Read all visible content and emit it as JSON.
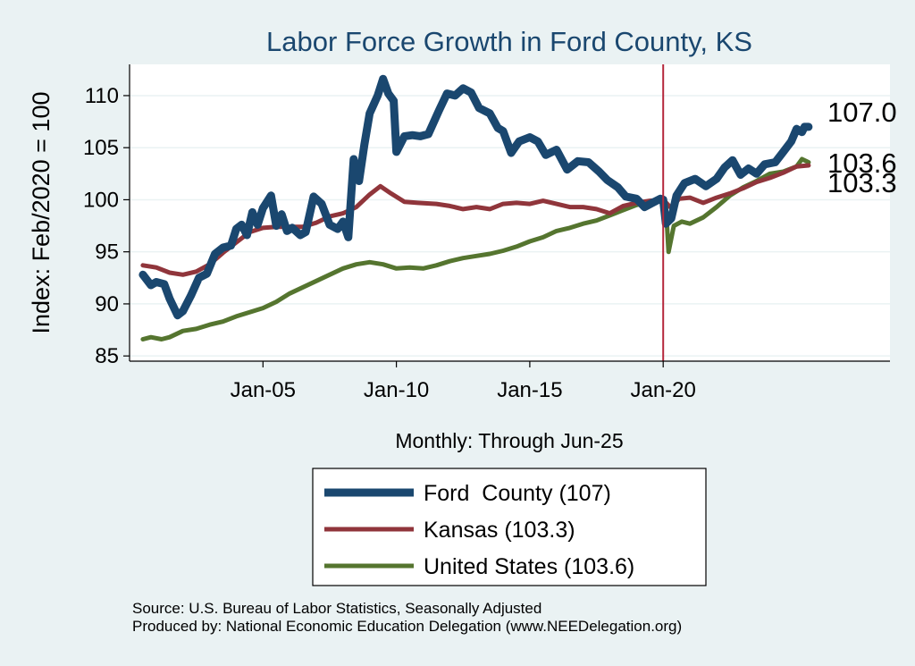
{
  "chart_data": {
    "type": "line",
    "title": "Labor Force Growth in Ford  County, KS",
    "xlabel": "Monthly: Through Jun-25",
    "ylabel": "Index: Feb/2020 = 100",
    "ylim": [
      84.5,
      113
    ],
    "xlim": [
      2000.0,
      2028.5
    ],
    "yticks": [
      85,
      90,
      95,
      100,
      105,
      110
    ],
    "xticks": [
      {
        "x": 2005.0,
        "label": "Jan-05"
      },
      {
        "x": 2010.0,
        "label": "Jan-10"
      },
      {
        "x": 2015.0,
        "label": "Jan-15"
      },
      {
        "x": 2020.0,
        "label": "Jan-20"
      }
    ],
    "grid": true,
    "vline": {
      "x": 2020.0,
      "color": "#b5283c"
    },
    "legend_position": "bottom",
    "series": [
      {
        "name": "Ford  County (107)",
        "color": "#1a476f",
        "end_label": "107.0",
        "points": [
          [
            2000.5,
            92.8
          ],
          [
            2000.8,
            91.8
          ],
          [
            2001.0,
            92.1
          ],
          [
            2001.3,
            91.9
          ],
          [
            2001.5,
            90.5
          ],
          [
            2001.8,
            88.9
          ],
          [
            2002.0,
            89.3
          ],
          [
            2002.3,
            90.8
          ],
          [
            2002.6,
            92.5
          ],
          [
            2002.9,
            92.9
          ],
          [
            2003.2,
            94.8
          ],
          [
            2003.5,
            95.4
          ],
          [
            2003.8,
            95.6
          ],
          [
            2004.0,
            97.2
          ],
          [
            2004.2,
            97.6
          ],
          [
            2004.4,
            96.6
          ],
          [
            2004.6,
            98.8
          ],
          [
            2004.8,
            97.6
          ],
          [
            2005.0,
            99.2
          ],
          [
            2005.3,
            100.4
          ],
          [
            2005.5,
            97.5
          ],
          [
            2005.7,
            98.6
          ],
          [
            2005.9,
            97.0
          ],
          [
            2006.1,
            97.3
          ],
          [
            2006.4,
            96.6
          ],
          [
            2006.6,
            96.9
          ],
          [
            2006.9,
            100.3
          ],
          [
            2007.2,
            99.6
          ],
          [
            2007.5,
            97.6
          ],
          [
            2007.8,
            97.2
          ],
          [
            2008.0,
            97.9
          ],
          [
            2008.2,
            96.4
          ],
          [
            2008.4,
            103.9
          ],
          [
            2008.6,
            101.8
          ],
          [
            2008.8,
            105.3
          ],
          [
            2009.0,
            108.3
          ],
          [
            2009.3,
            110.0
          ],
          [
            2009.5,
            111.6
          ],
          [
            2009.7,
            110.2
          ],
          [
            2009.9,
            109.5
          ],
          [
            2010.0,
            104.6
          ],
          [
            2010.3,
            106.1
          ],
          [
            2010.6,
            106.2
          ],
          [
            2010.9,
            106.1
          ],
          [
            2011.2,
            106.3
          ],
          [
            2011.6,
            108.6
          ],
          [
            2011.9,
            110.2
          ],
          [
            2012.2,
            110.0
          ],
          [
            2012.5,
            110.7
          ],
          [
            2012.8,
            110.3
          ],
          [
            2013.1,
            108.8
          ],
          [
            2013.5,
            108.3
          ],
          [
            2013.8,
            106.9
          ],
          [
            2014.0,
            106.6
          ],
          [
            2014.3,
            104.5
          ],
          [
            2014.6,
            105.6
          ],
          [
            2015.0,
            106.0
          ],
          [
            2015.3,
            105.6
          ],
          [
            2015.6,
            104.3
          ],
          [
            2016.0,
            104.8
          ],
          [
            2016.4,
            102.9
          ],
          [
            2016.8,
            103.7
          ],
          [
            2017.2,
            103.6
          ],
          [
            2017.6,
            102.7
          ],
          [
            2017.9,
            101.9
          ],
          [
            2018.3,
            101.2
          ],
          [
            2018.6,
            100.3
          ],
          [
            2019.0,
            100.1
          ],
          [
            2019.3,
            99.3
          ],
          [
            2019.6,
            99.7
          ],
          [
            2019.9,
            100.1
          ],
          [
            2020.0,
            100.0
          ],
          [
            2020.1,
            97.7
          ],
          [
            2020.3,
            98.2
          ],
          [
            2020.5,
            100.4
          ],
          [
            2020.8,
            101.6
          ],
          [
            2021.2,
            102.0
          ],
          [
            2021.6,
            101.3
          ],
          [
            2022.0,
            102.0
          ],
          [
            2022.3,
            103.1
          ],
          [
            2022.6,
            103.8
          ],
          [
            2022.9,
            102.4
          ],
          [
            2023.2,
            103.0
          ],
          [
            2023.5,
            102.5
          ],
          [
            2023.8,
            103.4
          ],
          [
            2024.2,
            103.6
          ],
          [
            2024.5,
            104.6
          ],
          [
            2024.8,
            105.6
          ],
          [
            2025.0,
            106.8
          ],
          [
            2025.2,
            106.5
          ],
          [
            2025.3,
            107.0
          ],
          [
            2025.45,
            107.0
          ]
        ]
      },
      {
        "name": "Kansas (103.3)",
        "color": "#90353b",
        "end_label": "103.3",
        "points": [
          [
            2000.5,
            93.7
          ],
          [
            2001.0,
            93.5
          ],
          [
            2001.5,
            93.0
          ],
          [
            2002.0,
            92.8
          ],
          [
            2002.5,
            93.1
          ],
          [
            2003.0,
            93.8
          ],
          [
            2003.5,
            94.9
          ],
          [
            2004.0,
            95.9
          ],
          [
            2004.5,
            96.9
          ],
          [
            2005.0,
            97.3
          ],
          [
            2005.5,
            97.4
          ],
          [
            2006.0,
            97.4
          ],
          [
            2006.5,
            97.4
          ],
          [
            2007.0,
            97.8
          ],
          [
            2007.5,
            98.4
          ],
          [
            2008.0,
            98.7
          ],
          [
            2008.5,
            99.3
          ],
          [
            2009.0,
            100.5
          ],
          [
            2009.4,
            101.3
          ],
          [
            2009.8,
            100.6
          ],
          [
            2010.3,
            99.8
          ],
          [
            2010.8,
            99.7
          ],
          [
            2011.5,
            99.6
          ],
          [
            2012.0,
            99.4
          ],
          [
            2012.5,
            99.1
          ],
          [
            2013.0,
            99.3
          ],
          [
            2013.5,
            99.1
          ],
          [
            2014.0,
            99.6
          ],
          [
            2014.5,
            99.7
          ],
          [
            2015.0,
            99.6
          ],
          [
            2015.5,
            99.9
          ],
          [
            2016.0,
            99.6
          ],
          [
            2016.5,
            99.3
          ],
          [
            2017.0,
            99.3
          ],
          [
            2017.5,
            99.1
          ],
          [
            2018.0,
            98.7
          ],
          [
            2018.5,
            99.4
          ],
          [
            2019.0,
            99.7
          ],
          [
            2019.5,
            99.9
          ],
          [
            2020.0,
            100.0
          ],
          [
            2020.3,
            99.2
          ],
          [
            2020.6,
            100.1
          ],
          [
            2021.0,
            100.2
          ],
          [
            2021.5,
            99.7
          ],
          [
            2022.0,
            100.2
          ],
          [
            2022.5,
            100.6
          ],
          [
            2023.0,
            101.1
          ],
          [
            2023.5,
            101.7
          ],
          [
            2024.0,
            102.1
          ],
          [
            2024.5,
            102.6
          ],
          [
            2025.0,
            103.2
          ],
          [
            2025.45,
            103.3
          ]
        ]
      },
      {
        "name": "United States (103.6)",
        "color": "#55752f",
        "end_label": "103.6",
        "points": [
          [
            2000.5,
            86.6
          ],
          [
            2000.8,
            86.8
          ],
          [
            2001.2,
            86.6
          ],
          [
            2001.5,
            86.8
          ],
          [
            2002.0,
            87.4
          ],
          [
            2002.5,
            87.6
          ],
          [
            2003.0,
            88.0
          ],
          [
            2003.5,
            88.3
          ],
          [
            2004.0,
            88.8
          ],
          [
            2004.5,
            89.2
          ],
          [
            2005.0,
            89.6
          ],
          [
            2005.5,
            90.2
          ],
          [
            2006.0,
            91.0
          ],
          [
            2006.5,
            91.6
          ],
          [
            2007.0,
            92.2
          ],
          [
            2007.5,
            92.8
          ],
          [
            2008.0,
            93.4
          ],
          [
            2008.5,
            93.8
          ],
          [
            2009.0,
            94.0
          ],
          [
            2009.5,
            93.8
          ],
          [
            2010.0,
            93.4
          ],
          [
            2010.5,
            93.5
          ],
          [
            2011.0,
            93.4
          ],
          [
            2011.5,
            93.7
          ],
          [
            2012.0,
            94.1
          ],
          [
            2012.5,
            94.4
          ],
          [
            2013.0,
            94.6
          ],
          [
            2013.5,
            94.8
          ],
          [
            2014.0,
            95.1
          ],
          [
            2014.5,
            95.5
          ],
          [
            2015.0,
            96.0
          ],
          [
            2015.5,
            96.4
          ],
          [
            2016.0,
            97.0
          ],
          [
            2016.5,
            97.3
          ],
          [
            2017.0,
            97.7
          ],
          [
            2017.5,
            98.0
          ],
          [
            2018.0,
            98.5
          ],
          [
            2018.5,
            99.0
          ],
          [
            2019.0,
            99.5
          ],
          [
            2019.5,
            99.8
          ],
          [
            2020.0,
            100.0
          ],
          [
            2020.1,
            99.4
          ],
          [
            2020.2,
            95.0
          ],
          [
            2020.4,
            97.5
          ],
          [
            2020.7,
            97.9
          ],
          [
            2021.0,
            97.7
          ],
          [
            2021.5,
            98.3
          ],
          [
            2022.0,
            99.3
          ],
          [
            2022.5,
            100.4
          ],
          [
            2023.0,
            101.2
          ],
          [
            2023.5,
            101.8
          ],
          [
            2024.0,
            102.5
          ],
          [
            2024.5,
            102.7
          ],
          [
            2025.0,
            103.2
          ],
          [
            2025.2,
            103.9
          ],
          [
            2025.45,
            103.6
          ]
        ]
      }
    ]
  },
  "footer": {
    "source": "Source: U.S. Bureau of Labor Statistics, Seasonally Adjusted",
    "producer": "Produced by: National Economic Education Delegation (www.NEEDelegation.org)"
  },
  "colors": {
    "background": "#eaf2f3",
    "plot_background": "#ffffff",
    "grid": "#eaf2f3"
  }
}
